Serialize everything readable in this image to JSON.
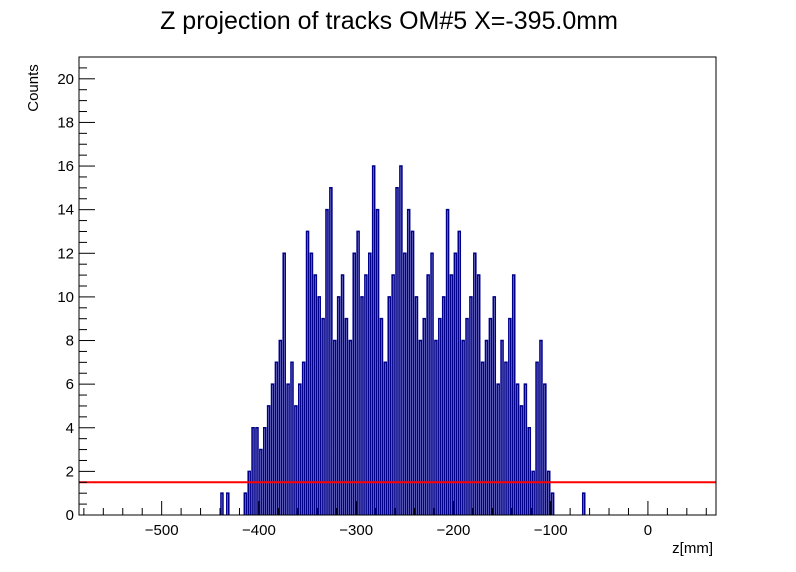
{
  "chart_data": {
    "type": "histogram",
    "title": "Z projection of tracks OM#5 X=-395.0mm",
    "xlabel": "z[mm]",
    "ylabel": "Counts",
    "xlim": [
      -585,
      70
    ],
    "ylim": [
      0,
      21
    ],
    "x_ticks": [
      -500,
      -400,
      -300,
      -200,
      -100,
      0
    ],
    "x_tick_labels": [
      "−500",
      "−400",
      "−300",
      "−200",
      "−100",
      "0"
    ],
    "y_ticks": [
      0,
      2,
      4,
      6,
      8,
      10,
      12,
      14,
      16,
      18,
      20
    ],
    "y_tick_labels": [
      "0",
      "2",
      "4",
      "6",
      "8",
      "10",
      "12",
      "14",
      "16",
      "18",
      "20"
    ],
    "series": [
      {
        "color": "#00008b",
        "bin_width": 2,
        "x": [
          -438,
          -432,
          -414,
          -410,
          -406,
          -402,
          -398,
          -394,
          -390,
          -386,
          -382,
          -378,
          -374,
          -370,
          -366,
          -362,
          -358,
          -354,
          -350,
          -346,
          -342,
          -338,
          -334,
          -330,
          -326,
          -322,
          -318,
          -314,
          -310,
          -306,
          -302,
          -298,
          -294,
          -290,
          -286,
          -282,
          -278,
          -274,
          -270,
          -266,
          -262,
          -258,
          -254,
          -250,
          -246,
          -242,
          -238,
          -234,
          -230,
          -226,
          -222,
          -218,
          -214,
          -210,
          -206,
          -202,
          -198,
          -194,
          -190,
          -186,
          -182,
          -178,
          -174,
          -170,
          -166,
          -162,
          -158,
          -154,
          -150,
          -146,
          -142,
          -138,
          -134,
          -130,
          -126,
          -122,
          -118,
          -114,
          -110,
          -106,
          -102,
          -98,
          -66
        ],
        "y": [
          1,
          1,
          1,
          2,
          4,
          4,
          3,
          4,
          5,
          6,
          7,
          8,
          12,
          6,
          7,
          5,
          6,
          7,
          13,
          12,
          11,
          10,
          9,
          14,
          15,
          8,
          10,
          11,
          9,
          8,
          12,
          13,
          10,
          11,
          12,
          16,
          14,
          9,
          7,
          10,
          11,
          15,
          16,
          12,
          14,
          13,
          10,
          8,
          9,
          11,
          12,
          8,
          9,
          10,
          14,
          11,
          12,
          13,
          8,
          9,
          10,
          12,
          11,
          7,
          8,
          9,
          10,
          6,
          8,
          7,
          9,
          11,
          6,
          5,
          6,
          4,
          2,
          7,
          8,
          6,
          2,
          1,
          1
        ]
      },
      {
        "name": "",
        "color": "#ff0000",
        "constant": 1.5
      }
    ],
    "grid": false,
    "legend": "none"
  }
}
